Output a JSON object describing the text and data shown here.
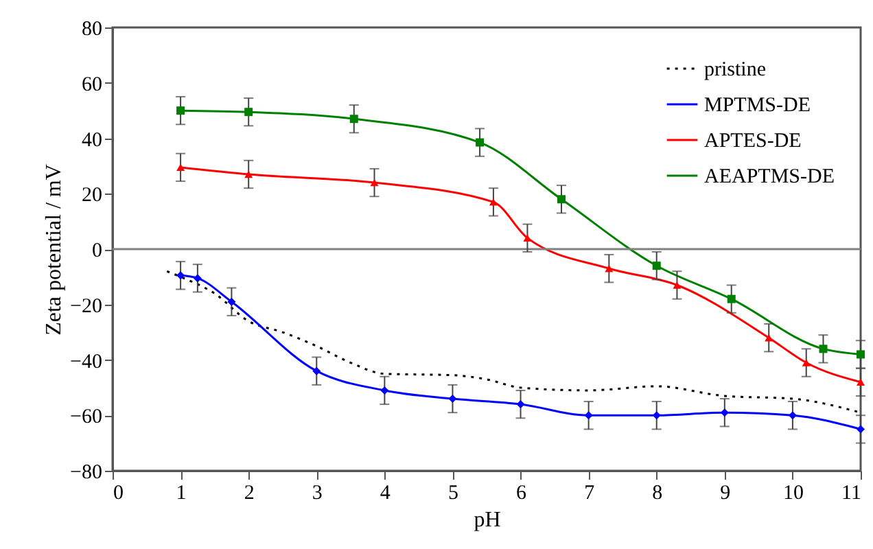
{
  "chart_data": {
    "type": "line",
    "xlabel": "pH",
    "ylabel": "Zeta potential / mV",
    "xlim": [
      0,
      11
    ],
    "xticks": [
      0,
      1,
      2,
      3,
      4,
      5,
      6,
      7,
      8,
      9,
      10,
      11
    ],
    "ylim": [
      -80,
      80
    ],
    "yticks": [
      -80,
      -60,
      -40,
      -20,
      0,
      20,
      40,
      60,
      80
    ],
    "grid": false,
    "legend": "top right",
    "ref_lines": [
      {
        "axis": "y",
        "value": 0,
        "color": "#808080"
      }
    ],
    "series": [
      {
        "name": "pristine",
        "color": "#000000",
        "line_style": "dotted",
        "marker": "none",
        "x": [
          0.8,
          1,
          1.5,
          2,
          2.5,
          3,
          3.5,
          4,
          5,
          5.5,
          6,
          7,
          8,
          9,
          10,
          11
        ],
        "values": [
          -8,
          -10,
          -16,
          -26,
          -30,
          -35,
          -41,
          -45,
          -45.5,
          -47,
          -50,
          -51,
          -49.5,
          -53,
          -54,
          -59
        ]
      },
      {
        "name": "MPTMS-DE",
        "color": "#0000ff",
        "line_style": "solid",
        "marker": "diamond",
        "x": [
          1,
          1.25,
          1.75,
          3,
          4,
          5,
          6,
          7,
          8,
          9,
          10,
          11
        ],
        "values": [
          -9.5,
          -10.5,
          -19,
          -44,
          -51,
          -54,
          -56,
          -60,
          -60,
          -59,
          -60,
          -65
        ],
        "errors": [
          5,
          5,
          5,
          5,
          5,
          5,
          5,
          5,
          5,
          5,
          5,
          5
        ]
      },
      {
        "name": "APTES-DE",
        "color": "#ff0000",
        "line_style": "solid",
        "marker": "triangle",
        "x": [
          1,
          2,
          3.85,
          5.6,
          6.1,
          7.3,
          8.3,
          9.65,
          10.2,
          11
        ],
        "values": [
          29.5,
          27,
          24,
          17,
          4,
          -7,
          -13,
          -32,
          -41,
          -48
        ],
        "errors": [
          5,
          5,
          5,
          5,
          5,
          5,
          5,
          5,
          5,
          5
        ]
      },
      {
        "name": "AEAPTMS-DE",
        "color": "#008000",
        "line_style": "solid",
        "marker": "square",
        "x": [
          1,
          2,
          3.55,
          5.4,
          6.6,
          8,
          9.1,
          10.45,
          11
        ],
        "values": [
          50,
          49.5,
          47,
          38.5,
          18,
          -6,
          -18,
          -36,
          -38
        ],
        "errors": [
          5,
          5,
          5,
          5,
          5,
          5,
          5,
          5,
          5
        ]
      }
    ]
  }
}
